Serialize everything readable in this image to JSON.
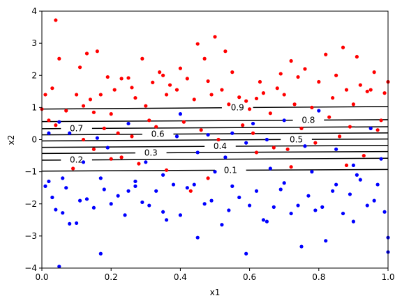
{
  "chart_data": {
    "type": "scatter",
    "title": "",
    "xlabel": "x1",
    "ylabel": "x2",
    "xlim": [
      0.0,
      1.0
    ],
    "ylim": [
      -4,
      4
    ],
    "x_ticks": [
      "0.0",
      "0.2",
      "0.4",
      "0.6",
      "0.8",
      "1.0"
    ],
    "y_ticks": [
      "−4",
      "−3",
      "−2",
      "−1",
      "0",
      "1",
      "2",
      "3",
      "4"
    ],
    "grid": false,
    "legend": "none",
    "colors": {
      "class_red": "#ff0000",
      "class_blue": "#0000ff",
      "contour": "#000000"
    },
    "series": [
      {
        "color": "#ff0000",
        "points": [
          [
            0.04,
            3.72
          ],
          [
            0.05,
            2.52
          ],
          [
            0.01,
            1.4
          ],
          [
            0.03,
            1.6
          ],
          [
            0.0,
            0.95
          ],
          [
            0.02,
            0.6
          ],
          [
            0.04,
            0.45
          ],
          [
            0.07,
            0.9
          ],
          [
            0.1,
            1.4
          ],
          [
            0.11,
            2.25
          ],
          [
            0.13,
            2.68
          ],
          [
            0.16,
            2.75
          ],
          [
            0.19,
            1.95
          ],
          [
            0.17,
            1.4
          ],
          [
            0.14,
            1.25
          ],
          [
            0.12,
            1.05
          ],
          [
            0.15,
            0.85
          ],
          [
            0.2,
            0.8
          ],
          [
            0.21,
            1.55
          ],
          [
            0.23,
            1.9
          ],
          [
            0.25,
            1.92
          ],
          [
            0.26,
            1.62
          ],
          [
            0.27,
            1.3
          ],
          [
            0.29,
            2.52
          ],
          [
            0.3,
            1.05
          ],
          [
            0.31,
            0.6
          ],
          [
            0.32,
            1.78
          ],
          [
            0.34,
            2.1
          ],
          [
            0.35,
            2.0
          ],
          [
            0.37,
            1.7
          ],
          [
            0.36,
            1.4
          ],
          [
            0.39,
            1.55
          ],
          [
            0.4,
            2.22
          ],
          [
            0.42,
            1.9
          ],
          [
            0.44,
            1.25
          ],
          [
            0.45,
            2.98
          ],
          [
            0.47,
            2.52
          ],
          [
            0.48,
            1.82
          ],
          [
            0.49,
            1.4
          ],
          [
            0.5,
            3.2
          ],
          [
            0.52,
            1.55
          ],
          [
            0.53,
            2.75
          ],
          [
            0.54,
            1.1
          ],
          [
            0.55,
            2.1
          ],
          [
            0.57,
            1.32
          ],
          [
            0.59,
            1.2
          ],
          [
            0.6,
            0.95
          ],
          [
            0.62,
            1.28
          ],
          [
            0.63,
            1.8
          ],
          [
            0.64,
            1.45
          ],
          [
            0.66,
            0.82
          ],
          [
            0.68,
            1.6
          ],
          [
            0.69,
            2.05
          ],
          [
            0.7,
            1.4
          ],
          [
            0.72,
            2.45
          ],
          [
            0.73,
            1.1
          ],
          [
            0.74,
            1.95
          ],
          [
            0.76,
            2.2
          ],
          [
            0.78,
            1.0
          ],
          [
            0.8,
            1.8
          ],
          [
            0.82,
            2.65
          ],
          [
            0.84,
            1.3
          ],
          [
            0.85,
            2.0
          ],
          [
            0.87,
            2.87
          ],
          [
            0.88,
            1.55
          ],
          [
            0.9,
            1.1
          ],
          [
            0.91,
            2.58
          ],
          [
            0.92,
            1.7
          ],
          [
            0.94,
            1.5
          ],
          [
            0.95,
            1.55
          ],
          [
            0.96,
            2.1
          ],
          [
            0.98,
            0.6
          ],
          [
            0.99,
            1.45
          ],
          [
            1.0,
            1.8
          ],
          [
            0.18,
            0.35
          ],
          [
            0.22,
            0.2
          ],
          [
            0.26,
            0.1
          ],
          [
            0.33,
            0.4
          ],
          [
            0.41,
            0.55
          ],
          [
            0.46,
            0.3
          ],
          [
            0.51,
            0.0
          ],
          [
            0.58,
            0.45
          ],
          [
            0.61,
            0.2
          ],
          [
            0.67,
            -0.25
          ],
          [
            0.71,
            -0.3
          ],
          [
            0.75,
            0.35
          ],
          [
            0.79,
            -0.1
          ],
          [
            0.83,
            0.7
          ],
          [
            0.86,
            0.1
          ],
          [
            0.89,
            0.4
          ],
          [
            0.93,
            -0.5
          ],
          [
            0.97,
            0.3
          ],
          [
            0.15,
            -0.3
          ],
          [
            0.2,
            -0.6
          ],
          [
            0.23,
            -0.55
          ],
          [
            0.28,
            -0.75
          ],
          [
            0.36,
            -0.95
          ],
          [
            0.43,
            -1.6
          ],
          [
            0.48,
            -1.2
          ],
          [
            0.62,
            -0.4
          ],
          [
            0.72,
            -0.85
          ],
          [
            0.88,
            -0.8
          ],
          [
            0.09,
            -0.9
          ],
          [
            0.12,
            0.0
          ]
        ]
      },
      {
        "color": "#0000ff",
        "points": [
          [
            0.05,
            -3.95
          ],
          [
            0.02,
            -1.3
          ],
          [
            0.03,
            -1.8
          ],
          [
            0.04,
            -2.18
          ],
          [
            0.06,
            -2.28
          ],
          [
            0.07,
            -1.5
          ],
          [
            0.08,
            -2.62
          ],
          [
            0.1,
            -2.6
          ],
          [
            0.11,
            -1.9
          ],
          [
            0.13,
            -1.85
          ],
          [
            0.15,
            -2.12
          ],
          [
            0.17,
            -3.55
          ],
          [
            0.18,
            -1.55
          ],
          [
            0.2,
            -2.0
          ],
          [
            0.22,
            -1.75
          ],
          [
            0.24,
            -2.35
          ],
          [
            0.25,
            -1.6
          ],
          [
            0.27,
            -1.3
          ],
          [
            0.29,
            -1.95
          ],
          [
            0.31,
            -2.05
          ],
          [
            0.33,
            -1.6
          ],
          [
            0.35,
            -2.25
          ],
          [
            0.36,
            -2.5
          ],
          [
            0.38,
            -1.4
          ],
          [
            0.4,
            -2.35
          ],
          [
            0.42,
            -1.5
          ],
          [
            0.44,
            -1.4
          ],
          [
            0.45,
            -3.05
          ],
          [
            0.47,
            -2.0
          ],
          [
            0.49,
            -1.9
          ],
          [
            0.5,
            -1.0
          ],
          [
            0.52,
            -2.65
          ],
          [
            0.54,
            -2.2
          ],
          [
            0.55,
            -1.45
          ],
          [
            0.57,
            -1.8
          ],
          [
            0.59,
            -3.55
          ],
          [
            0.6,
            -2.05
          ],
          [
            0.62,
            -1.6
          ],
          [
            0.64,
            -2.5
          ],
          [
            0.65,
            -2.55
          ],
          [
            0.67,
            -2.1
          ],
          [
            0.69,
            -1.55
          ],
          [
            0.7,
            -1.35
          ],
          [
            0.72,
            -2.3
          ],
          [
            0.74,
            -2.05
          ],
          [
            0.75,
            -3.33
          ],
          [
            0.77,
            -1.75
          ],
          [
            0.79,
            -2.2
          ],
          [
            0.81,
            -2.1
          ],
          [
            0.82,
            -3.15
          ],
          [
            0.84,
            -1.6
          ],
          [
            0.85,
            -1.4
          ],
          [
            0.87,
            -2.3
          ],
          [
            0.89,
            -1.7
          ],
          [
            0.9,
            -2.55
          ],
          [
            0.92,
            -1.25
          ],
          [
            0.94,
            -2.05
          ],
          [
            0.96,
            -1.9
          ],
          [
            0.97,
            -1.4
          ],
          [
            0.99,
            -2.25
          ],
          [
            1.0,
            -3.05
          ],
          [
            1.0,
            -3.5
          ],
          [
            0.02,
            0.2
          ],
          [
            0.05,
            0.55
          ],
          [
            0.08,
            0.2
          ],
          [
            0.16,
            0.05
          ],
          [
            0.19,
            -0.25
          ],
          [
            0.25,
            0.5
          ],
          [
            0.3,
            -0.7
          ],
          [
            0.39,
            0.1
          ],
          [
            0.4,
            0.8
          ],
          [
            0.45,
            -0.4
          ],
          [
            0.48,
            0.15
          ],
          [
            0.55,
            0.2
          ],
          [
            0.59,
            -0.1
          ],
          [
            0.61,
            0.5
          ],
          [
            0.65,
            0.0
          ],
          [
            0.7,
            0.6
          ],
          [
            0.76,
            -0.2
          ],
          [
            0.8,
            0.9
          ],
          [
            0.85,
            -0.3
          ],
          [
            0.9,
            -0.8
          ],
          [
            0.95,
            0.35
          ],
          [
            0.35,
            -1.1
          ],
          [
            0.27,
            -1.45
          ],
          [
            0.17,
            -1.2
          ],
          [
            0.12,
            -0.7
          ],
          [
            0.53,
            -0.55
          ],
          [
            0.66,
            -0.9
          ],
          [
            0.78,
            -1.0
          ],
          [
            0.91,
            -1.1
          ],
          [
            0.98,
            -0.6
          ],
          [
            0.06,
            -1.2
          ],
          [
            0.01,
            -1.45
          ]
        ]
      }
    ],
    "contours": [
      {
        "level": "0.1",
        "y0": -0.98,
        "y1": -0.93,
        "label_x": 0.545
      },
      {
        "level": "0.2",
        "y0": -0.64,
        "y1": -0.58,
        "label_x": 0.1
      },
      {
        "level": "0.3",
        "y0": -0.43,
        "y1": -0.37,
        "label_x": 0.315
      },
      {
        "level": "0.4",
        "y0": -0.24,
        "y1": -0.18,
        "label_x": 0.515
      },
      {
        "level": "0.5",
        "y0": -0.04,
        "y1": 0.02,
        "label_x": 0.735
      },
      {
        "level": "0.6",
        "y0": 0.15,
        "y1": 0.21,
        "label_x": 0.335
      },
      {
        "level": "0.7",
        "y0": 0.34,
        "y1": 0.4,
        "label_x": 0.1
      },
      {
        "level": "0.8",
        "y0": 0.56,
        "y1": 0.62,
        "label_x": 0.77
      },
      {
        "level": "0.9",
        "y0": 0.95,
        "y1": 1.03,
        "label_x": 0.565
      }
    ]
  }
}
